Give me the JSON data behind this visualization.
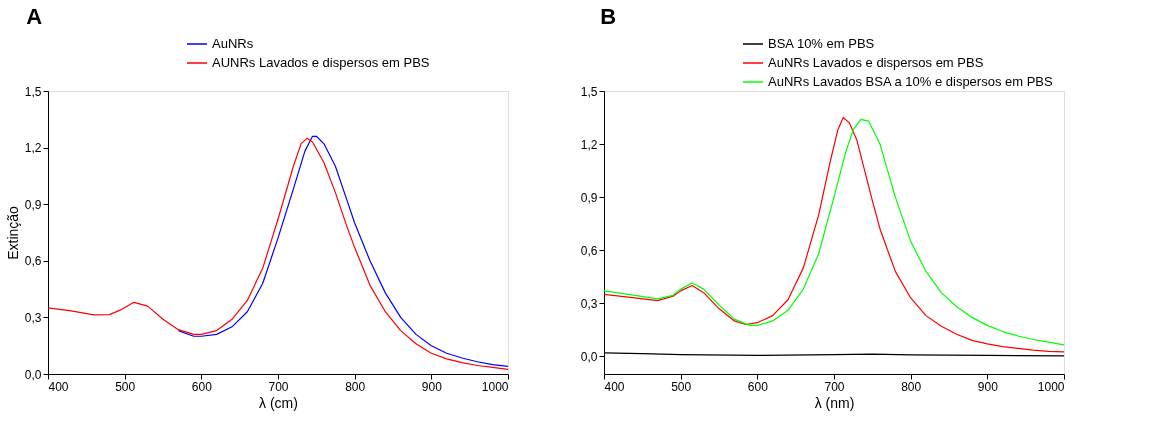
{
  "chart_data": [
    {
      "type": "line",
      "title": "A",
      "xlabel": "λ (cm)",
      "ylabel": "Extinção",
      "legend": "top right",
      "grid": false,
      "line_style": "solid",
      "xlim": [
        400,
        1000
      ],
      "xticks": [
        400,
        500,
        600,
        700,
        800,
        900,
        1000
      ],
      "ylim": [
        0,
        1.5
      ],
      "yticks": [
        {
          "value": 0,
          "label": "0,0"
        },
        {
          "value": 0.3,
          "label": "0,3"
        },
        {
          "value": 0.6,
          "label": "0,6"
        },
        {
          "value": 0.9,
          "label": "0,9"
        },
        {
          "value": 1.2,
          "label": "1,2"
        },
        {
          "value": 1.5,
          "label": "1,5"
        }
      ],
      "series": [
        {
          "name": "AuNRs",
          "color": "#0000ff",
          "x": [
            570,
            590,
            600,
            620,
            640,
            660,
            680,
            700,
            720,
            735,
            745,
            750,
            760,
            775,
            790,
            800,
            820,
            840,
            860,
            880,
            900,
            920,
            940,
            960,
            980,
            1000
          ],
          "values": [
            0.23,
            0.2,
            0.2,
            0.21,
            0.25,
            0.33,
            0.48,
            0.72,
            0.98,
            1.18,
            1.26,
            1.26,
            1.22,
            1.1,
            0.92,
            0.8,
            0.6,
            0.43,
            0.3,
            0.21,
            0.15,
            0.11,
            0.085,
            0.065,
            0.05,
            0.04
          ]
        },
        {
          "name": "AUNRs Lavados e dispersos em PBS",
          "color": "#ff0000",
          "x": [
            400,
            430,
            460,
            480,
            495,
            512,
            530,
            550,
            570,
            590,
            600,
            620,
            640,
            660,
            680,
            700,
            720,
            730,
            738,
            745,
            760,
            775,
            790,
            800,
            820,
            840,
            860,
            880,
            900,
            920,
            940,
            960,
            980,
            1000
          ],
          "values": [
            0.35,
            0.335,
            0.313,
            0.315,
            0.34,
            0.38,
            0.36,
            0.29,
            0.235,
            0.21,
            0.21,
            0.23,
            0.29,
            0.39,
            0.56,
            0.82,
            1.1,
            1.22,
            1.25,
            1.23,
            1.12,
            0.96,
            0.78,
            0.67,
            0.47,
            0.33,
            0.23,
            0.16,
            0.11,
            0.08,
            0.06,
            0.045,
            0.035,
            0.025
          ]
        }
      ]
    },
    {
      "type": "line",
      "title": "B",
      "xlabel": "λ (nm)",
      "legend": "top right",
      "grid": false,
      "line_style": "solid",
      "xlim": [
        400,
        1000
      ],
      "xticks": [
        400,
        500,
        600,
        700,
        800,
        900,
        1000
      ],
      "ylim": [
        -0.1,
        1.5
      ],
      "yticks": [
        {
          "value": 0,
          "label": "0,0"
        },
        {
          "value": 0.3,
          "label": "0,3"
        },
        {
          "value": 0.6,
          "label": "0,6"
        },
        {
          "value": 0.9,
          "label": "0,9"
        },
        {
          "value": 1.2,
          "label": "1,2"
        },
        {
          "value": 1.5,
          "label": "1,5"
        }
      ],
      "series": [
        {
          "name": "BSA 10% em PBS",
          "color": "#000000",
          "x": [
            400,
            450,
            500,
            600,
            700,
            750,
            800,
            900,
            1000
          ],
          "values": [
            0.02,
            0.015,
            0.01,
            0.005,
            0.01,
            0.012,
            0.008,
            0.005,
            0.002
          ]
        },
        {
          "name": "AuNRs Lavados e dispersos em PBS",
          "color": "#ff0000",
          "x": [
            400,
            440,
            470,
            490,
            500,
            515,
            530,
            550,
            570,
            585,
            600,
            620,
            640,
            660,
            680,
            695,
            705,
            712,
            720,
            730,
            740,
            750,
            760,
            780,
            800,
            820,
            840,
            860,
            880,
            900,
            920,
            940,
            960,
            980,
            1000
          ],
          "values": [
            0.35,
            0.33,
            0.315,
            0.34,
            0.37,
            0.4,
            0.36,
            0.27,
            0.2,
            0.18,
            0.19,
            0.23,
            0.32,
            0.5,
            0.8,
            1.1,
            1.28,
            1.35,
            1.32,
            1.22,
            1.05,
            0.88,
            0.72,
            0.48,
            0.33,
            0.23,
            0.17,
            0.125,
            0.09,
            0.07,
            0.055,
            0.045,
            0.035,
            0.028,
            0.025
          ]
        },
        {
          "name": "AuNRs Lavados BSA a 10% e dispersos em PBS",
          "color": "#00ff00",
          "x": [
            400,
            440,
            470,
            490,
            500,
            515,
            530,
            550,
            570,
            590,
            600,
            620,
            640,
            660,
            680,
            700,
            715,
            725,
            735,
            745,
            760,
            770,
            780,
            800,
            820,
            840,
            860,
            880,
            900,
            920,
            940,
            960,
            980,
            1000
          ],
          "values": [
            0.37,
            0.345,
            0.325,
            0.345,
            0.38,
            0.415,
            0.38,
            0.29,
            0.21,
            0.175,
            0.175,
            0.2,
            0.26,
            0.38,
            0.58,
            0.9,
            1.15,
            1.28,
            1.34,
            1.33,
            1.2,
            1.05,
            0.9,
            0.65,
            0.48,
            0.36,
            0.28,
            0.22,
            0.175,
            0.14,
            0.115,
            0.095,
            0.08,
            0.065
          ]
        }
      ]
    }
  ]
}
